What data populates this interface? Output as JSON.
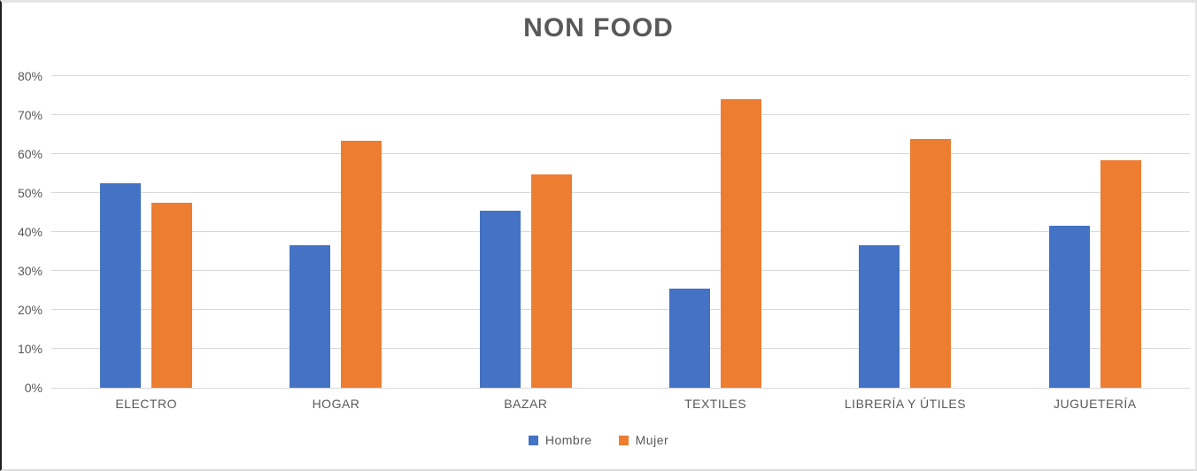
{
  "chart_data": {
    "type": "bar",
    "title": "NON FOOD",
    "categories": [
      "ELECTRO",
      "HOGAR",
      "BAZAR",
      "TEXTILES",
      "LIBRERÍA Y ÚTILES",
      "JUGUETERÍA"
    ],
    "series": [
      {
        "name": "Hombre",
        "color": "#4472C4",
        "values": [
          52.5,
          36.5,
          45.5,
          25.5,
          36.5,
          41.5
        ]
      },
      {
        "name": "Mujer",
        "color": "#ED7D31",
        "values": [
          47.5,
          63.3,
          54.7,
          74.2,
          63.8,
          58.3
        ]
      }
    ],
    "y_axis": {
      "min": 0,
      "max": 80,
      "step": 10,
      "tick_labels": [
        "0%",
        "10%",
        "20%",
        "30%",
        "40%",
        "50%",
        "60%",
        "70%",
        "80%"
      ]
    },
    "grid": true,
    "legend_position": "bottom",
    "gridline_color": "#D9D9D9",
    "text_color": "#595959",
    "background_color": "#FFFFFF"
  }
}
